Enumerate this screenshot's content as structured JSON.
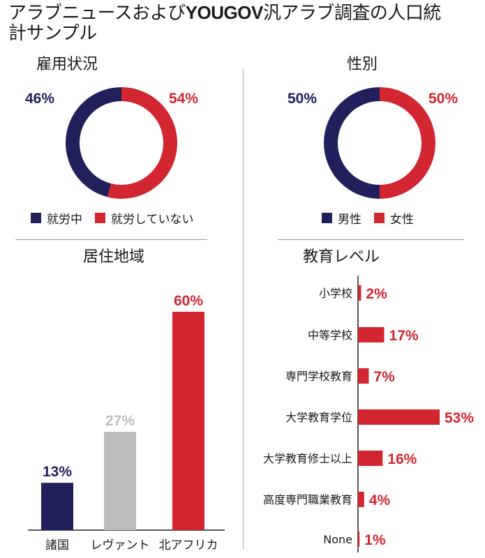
{
  "title": {
    "part1": "アラブニュースおよび",
    "brand": "YOUGOV",
    "part2": "汎アラブ調査の人口統計サンプル"
  },
  "colors": {
    "navy": "#22205c",
    "red": "#d22630",
    "gray": "#bdbdbd"
  },
  "chart_data": [
    {
      "type": "pie",
      "title": "雇用状況",
      "style": "donut",
      "slices": [
        {
          "label": "就労中",
          "value": 46,
          "display": "46%",
          "color": "#22205c"
        },
        {
          "label": "就労していない",
          "value": 54,
          "display": "54%",
          "color": "#d22630"
        }
      ],
      "legend": [
        "就労中",
        "就労していない"
      ],
      "legend_position": "bottom"
    },
    {
      "type": "pie",
      "title": "性別",
      "style": "donut",
      "slices": [
        {
          "label": "男性",
          "value": 50,
          "display": "50%",
          "color": "#22205c"
        },
        {
          "label": "女性",
          "value": 50,
          "display": "50%",
          "color": "#d22630"
        }
      ],
      "legend": [
        "男性",
        "女性"
      ],
      "legend_position": "bottom"
    },
    {
      "type": "bar",
      "title": "居住地域",
      "categories": [
        "諸国",
        "レヴァント",
        "北アフリカ"
      ],
      "values": [
        13,
        27,
        60
      ],
      "display": [
        "13%",
        "27%",
        "60%"
      ],
      "colors": [
        "#22205c",
        "#bdbdbd",
        "#d22630"
      ],
      "label_colors": [
        "#22205c",
        "#bdbdbd",
        "#d22630"
      ],
      "ylim": [
        0,
        60
      ],
      "grid": false
    },
    {
      "type": "bar",
      "orientation": "horizontal",
      "title": "教育レベル",
      "categories": [
        "小学校",
        "中等学校",
        "専門学校教育",
        "大学教育学位",
        "大学教育修士以上",
        "高度専門職業教育",
        "None"
      ],
      "values": [
        2,
        17,
        7,
        53,
        16,
        4,
        1
      ],
      "display": [
        "2%",
        "17%",
        "7%",
        "53%",
        "16%",
        "4%",
        "1%"
      ],
      "color": "#d22630",
      "xlim": [
        0,
        53
      ],
      "grid": false
    }
  ]
}
